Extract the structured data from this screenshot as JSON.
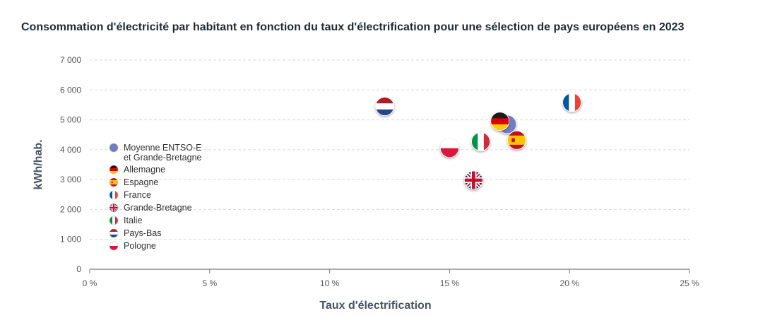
{
  "chart_data": {
    "type": "scatter",
    "title": "Consommation d'électricité par habitant en fonction du taux d'électrification pour une sélection de pays européens en 2023",
    "xlabel": "Taux d'électrification",
    "ylabel": "kWh/hab.",
    "xlim": [
      0,
      25
    ],
    "ylim": [
      0,
      7000
    ],
    "x_ticks": [
      0,
      5,
      10,
      15,
      20,
      25
    ],
    "x_tick_labels": [
      "0 %",
      "5 %",
      "10 %",
      "15 %",
      "20 %",
      "25 %"
    ],
    "y_ticks": [
      0,
      1000,
      2000,
      3000,
      4000,
      5000,
      6000,
      7000
    ],
    "y_tick_labels": [
      "0",
      "1 000",
      "2 000",
      "3 000",
      "4 000",
      "5 000",
      "6 000",
      "7 000"
    ],
    "grid": "horizontal dashed",
    "legend_position": "left, inside plot",
    "series": [
      {
        "name": "Moyenne ENTSO-E et Grande-Bretagne",
        "legend_lines": [
          "Moyenne ENTSO-E",
          "et Grande-Bretagne"
        ],
        "icon": "entso-average-marker",
        "x": 17.4,
        "y": 4850
      },
      {
        "name": "Allemagne",
        "legend_lines": [
          "Allemagne"
        ],
        "icon": "flag-germany",
        "x": 17.1,
        "y": 4950
      },
      {
        "name": "Espagne",
        "legend_lines": [
          "Espagne"
        ],
        "icon": "flag-spain",
        "x": 17.8,
        "y": 4320
      },
      {
        "name": "France",
        "legend_lines": [
          "France"
        ],
        "icon": "flag-france",
        "x": 20.1,
        "y": 5580
      },
      {
        "name": "Grande-Bretagne",
        "legend_lines": [
          "Grande-Bretagne"
        ],
        "icon": "flag-uk",
        "x": 16.0,
        "y": 2980
      },
      {
        "name": "Italie",
        "legend_lines": [
          "Italie"
        ],
        "icon": "flag-italy",
        "x": 16.3,
        "y": 4270
      },
      {
        "name": "Pays-Bas",
        "legend_lines": [
          "Pays-Bas"
        ],
        "icon": "flag-netherlands",
        "x": 12.3,
        "y": 5450
      },
      {
        "name": "Pologne",
        "legend_lines": [
          "Pologne"
        ],
        "icon": "flag-poland",
        "x": 15.0,
        "y": 4050
      }
    ],
    "colors": {
      "average": "#6f7fbd",
      "grid": "#d9d9d9",
      "axis": "#7a7a7a"
    }
  }
}
